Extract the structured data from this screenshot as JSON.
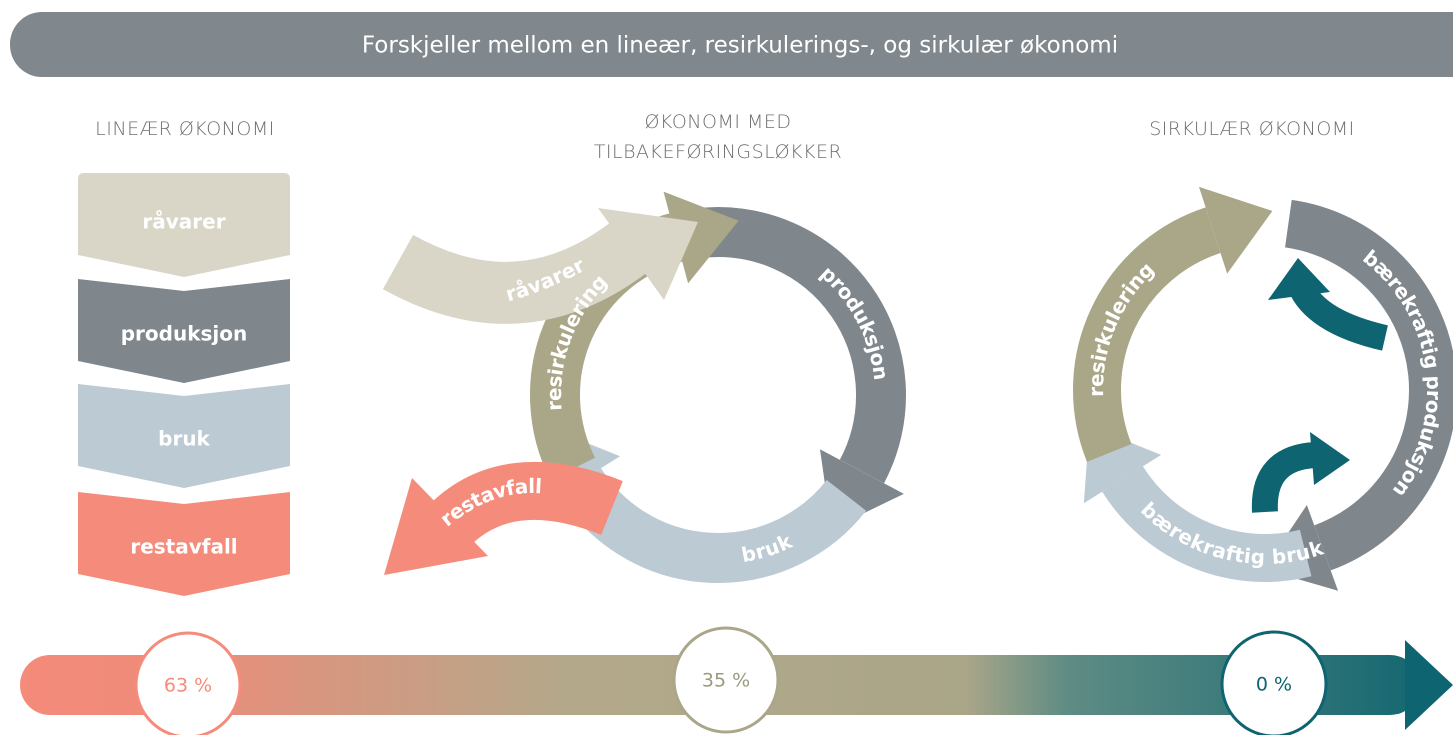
{
  "title": "Forskjeller mellom en lineær, resirkulerings-, og sirkulær økonomi",
  "linear": {
    "heading": "LINEÆR ØKONOMI",
    "steps": [
      "råvarer",
      "produksjon",
      "bruk",
      "restavfall"
    ],
    "share": "63 %"
  },
  "recycling": {
    "heading_lines": [
      "ØKONOMI MED",
      "TILBAKEFØRINGSLØKKER"
    ],
    "inflow": "råvarer",
    "production": "produksjon",
    "use": "bruk",
    "recycling": "resirkulering",
    "waste": "restavfall",
    "share": "35 %"
  },
  "circular": {
    "heading": "SIRKULÆR ØKONOMI",
    "production": "bærekraftig produksjon",
    "use": "bærekraftig bruk",
    "recycling": "resirkulering",
    "share": "0 %"
  }
}
